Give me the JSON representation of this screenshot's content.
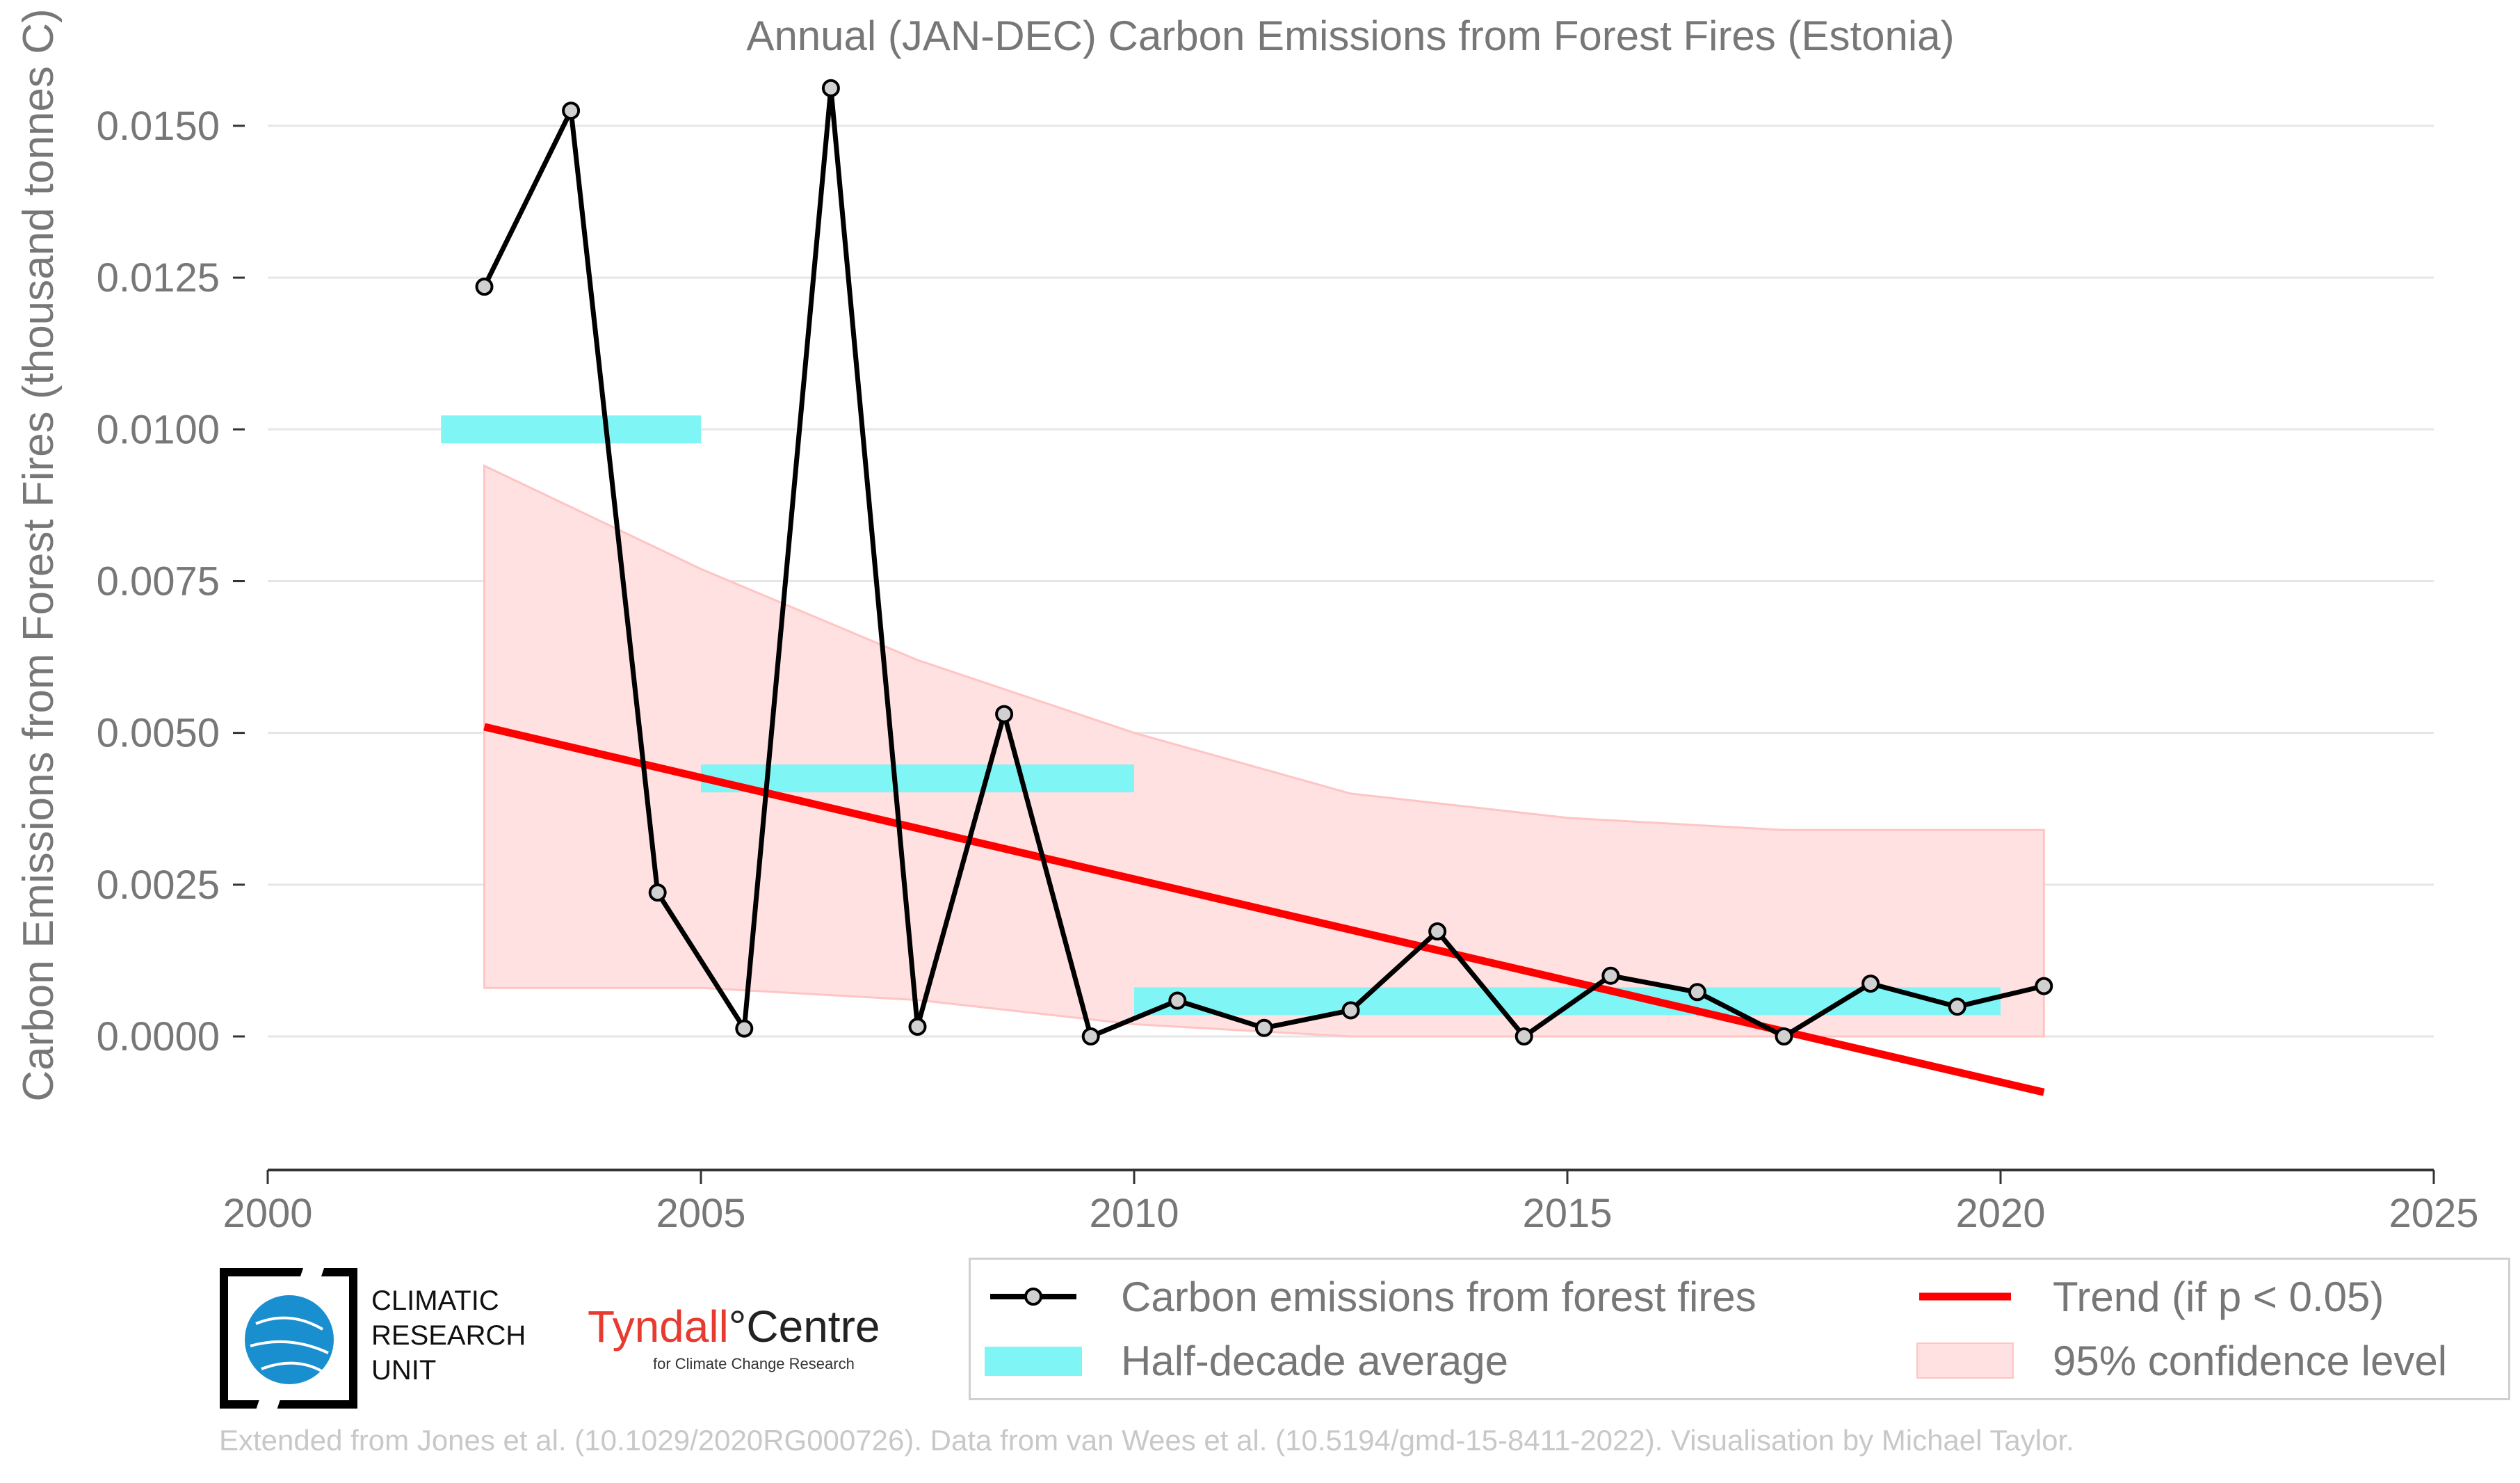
{
  "chart_data": {
    "type": "line",
    "title": "Annual (JAN-DEC) Carbon Emissions from Forest Fires (Estonia)",
    "xlabel": "",
    "ylabel": "Carbon Emissions from Forest Fires (thousand tonnes C)",
    "xlim": [
      2000,
      2025
    ],
    "ylim": [
      -0.0022,
      0.0165
    ],
    "xticks": [
      "2000",
      "2005",
      "2010",
      "2015",
      "2020",
      "2025"
    ],
    "yticks": [
      "0.0000",
      "0.0025",
      "0.0050",
      "0.0075",
      "0.0100",
      "0.0125",
      "0.0150"
    ],
    "grid": "horizontal",
    "series": [
      {
        "name": "Carbon emissions from forest fires",
        "x": [
          2002.5,
          2003.5,
          2004.5,
          2005.5,
          2006.5,
          2007.5,
          2008.5,
          2009.5,
          2010.5,
          2011.5,
          2012.5,
          2013.5,
          2014.5,
          2015.5,
          2016.5,
          2017.5,
          2018.5,
          2019.5,
          2020.5
        ],
        "y": [
          0.01235,
          0.01525,
          0.00237,
          0.00013,
          0.01562,
          0.00016,
          0.00531,
          0.0,
          0.00059,
          0.00014,
          0.00043,
          0.00173,
          0.0,
          0.001,
          0.00073,
          0.0,
          0.00087,
          0.00049,
          0.00083
        ],
        "color": "#000000"
      },
      {
        "name": "Half-decade average",
        "segments": [
          {
            "x0": 2002,
            "x1": 2005,
            "y": 0.01
          },
          {
            "x0": 2005,
            "x1": 2010,
            "y": 0.00425
          },
          {
            "x0": 2010,
            "x1": 2020,
            "y": 0.00058
          }
        ],
        "color": "#7ff5f5"
      },
      {
        "name": "Trend (if p < 0.05)",
        "x": [
          2002.5,
          2020.5
        ],
        "y": [
          0.0051,
          -0.00092
        ],
        "color": "#ff0000"
      },
      {
        "name": "95% confidence level",
        "x": [
          2002.5,
          2005,
          2007.5,
          2010,
          2012.5,
          2015,
          2017.5,
          2020.5
        ],
        "upper": [
          0.0094,
          0.0077,
          0.0062,
          0.005,
          0.004,
          0.0036,
          0.0034,
          0.0034
        ],
        "lower": [
          0.0008,
          0.0008,
          0.0006,
          0.0002,
          0.0,
          0.0,
          0.0,
          0.0
        ],
        "color": "#ffe1e1"
      }
    ],
    "legend_position": "bottom"
  },
  "legend": {
    "series_label": "Carbon emissions from forest fires",
    "trend_label": "Trend (if p < 0.05)",
    "halfdecade_label": "Half-decade average",
    "ci_label": "95% confidence level"
  },
  "logos": {
    "cru_line1": "CLIMATIC",
    "cru_line2": "RESEARCH",
    "cru_line3": "UNIT",
    "tyndall_part1": "Tyndall",
    "tyndall_part2": "°Centre",
    "tyndall_sub": "for Climate Change Research"
  },
  "footer": "Extended from Jones et al. (10.1029/2020RG000726). Data from van Wees et al. (10.5194/gmd-15-8411-2022). Visualisation by Michael Taylor."
}
